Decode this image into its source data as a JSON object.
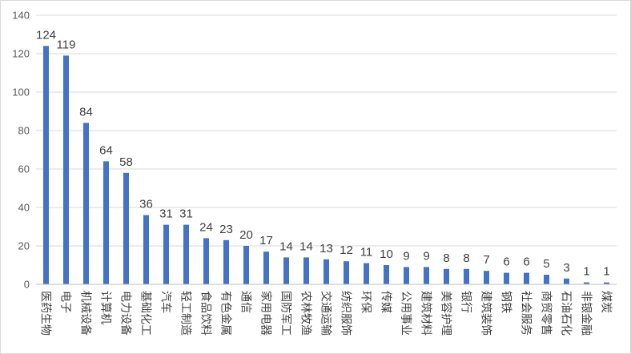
{
  "chart_data": {
    "type": "bar",
    "categories": [
      "医药生物",
      "电子",
      "机械设备",
      "计算机",
      "电力设备",
      "基础化工",
      "汽车",
      "轻工制造",
      "食品饮料",
      "有色金属",
      "通信",
      "家用电器",
      "国防军工",
      "农林牧渔",
      "交通运输",
      "纺织服饰",
      "环保",
      "传媒",
      "公用事业",
      "建筑材料",
      "美容护理",
      "银行",
      "建筑装饰",
      "钢铁",
      "社会服务",
      "商贸零售",
      "石油石化",
      "非银金融",
      "煤炭"
    ],
    "values": [
      124,
      119,
      84,
      64,
      58,
      36,
      31,
      31,
      24,
      23,
      20,
      17,
      14,
      14,
      13,
      12,
      11,
      10,
      9,
      9,
      8,
      8,
      7,
      6,
      6,
      5,
      3,
      1,
      1
    ],
    "ylim": [
      0,
      140
    ],
    "yticks": [
      0,
      20,
      40,
      60,
      80,
      100,
      120,
      140
    ],
    "grid": true,
    "legend": "none",
    "data_labels": true,
    "x_label_orientation": "vertical"
  },
  "colors": {
    "bar": "#4472C4",
    "gridline": "#D9D9D9",
    "axis": "#BFBFBF",
    "tick_text": "#595959",
    "label_text": "#404040"
  }
}
